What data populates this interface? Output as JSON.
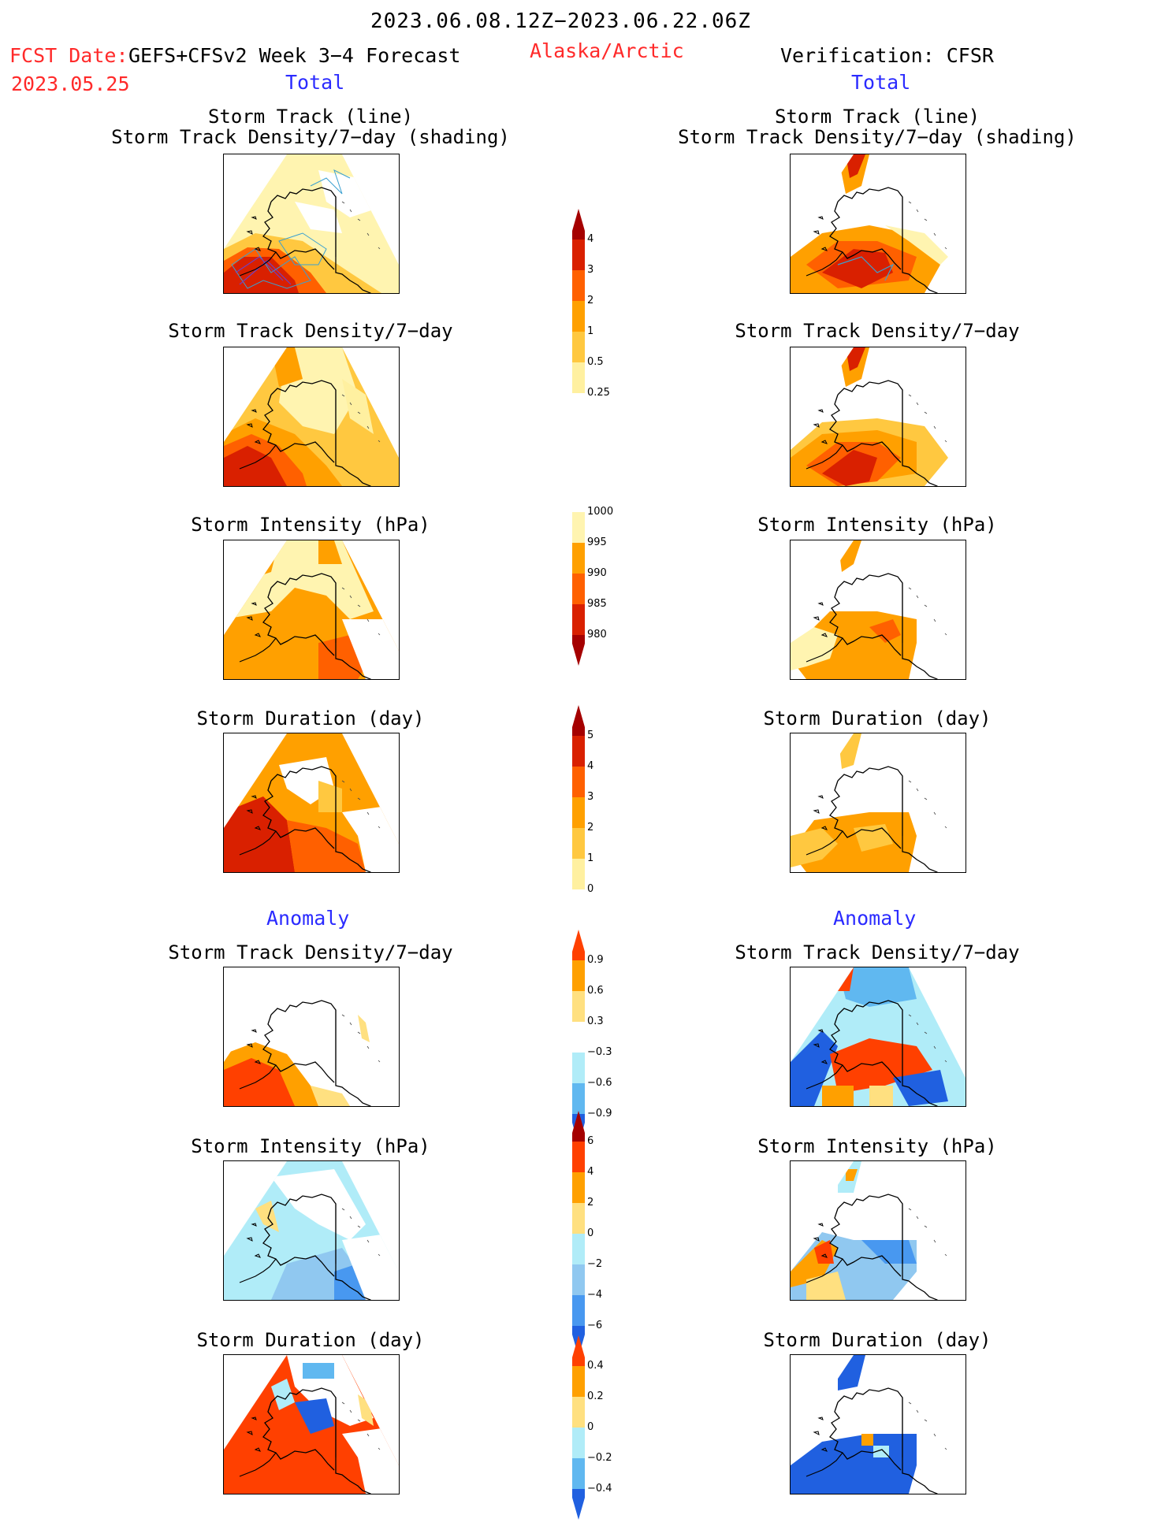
{
  "header": {
    "period": "2023.06.08.12Z−2023.06.22.06Z",
    "fcst_label": "FCST Date:",
    "model": "GEFS+CFSv2 Week 3−4 Forecast",
    "fcst_date": "2023.05.25",
    "region": "Alaska/Arctic",
    "verification": "Verification: CFSR"
  },
  "sections": {
    "total_left": "Total",
    "total_right": "Total",
    "anomaly_left": "Anomaly",
    "anomaly_right": "Anomaly"
  },
  "panel_titles": {
    "track_line": "Storm Track (line)",
    "track_shading": "Storm Track Density/7−day (shading)",
    "density": "Storm Track Density/7−day",
    "intensity": "Storm Intensity (hPa)",
    "duration": "Storm Duration (day)"
  },
  "colorbars": {
    "density": {
      "ticks": [
        "4",
        "3",
        "2",
        "1",
        "0.5",
        "0.25"
      ],
      "colors": [
        "#a50000",
        "#d92000",
        "#ff6000",
        "#ffa000",
        "#ffc840",
        "#fff0a0"
      ]
    },
    "intensity": {
      "ticks": [
        "1000",
        "995",
        "990",
        "985",
        "980"
      ],
      "colors": [
        "#fff4b0",
        "#ffa000",
        "#ff6000",
        "#d92000",
        "#a50000"
      ]
    },
    "duration": {
      "ticks": [
        "5",
        "4",
        "3",
        "2",
        "1",
        "0"
      ],
      "colors": [
        "#a50000",
        "#d92000",
        "#ff6000",
        "#ffa000",
        "#ffc840",
        "#fff0a0"
      ]
    },
    "anom_density": {
      "ticks": [
        "0.9",
        "0.6",
        "0.3",
        "−0.3",
        "−0.6",
        "−0.9"
      ],
      "colors": [
        "#ff4000",
        "#ffa000",
        "#ffe080",
        "#ffffff",
        "#b0ecf8",
        "#60b8f0",
        "#2060e0"
      ]
    },
    "anom_intensity": {
      "ticks": [
        "6",
        "4",
        "2",
        "0",
        "−2",
        "−4",
        "−6"
      ],
      "colors": [
        "#a50000",
        "#ff4000",
        "#ffa000",
        "#ffe080",
        "#b0ecf8",
        "#90c8f0",
        "#4898f0",
        "#2060e0"
      ]
    },
    "anom_duration": {
      "ticks": [
        "0.4",
        "0.2",
        "0",
        "−0.2",
        "−0.4"
      ],
      "colors": [
        "#ff4000",
        "#ffa000",
        "#ffe080",
        "#b0ecf8",
        "#60b8f0",
        "#2060e0"
      ]
    }
  }
}
